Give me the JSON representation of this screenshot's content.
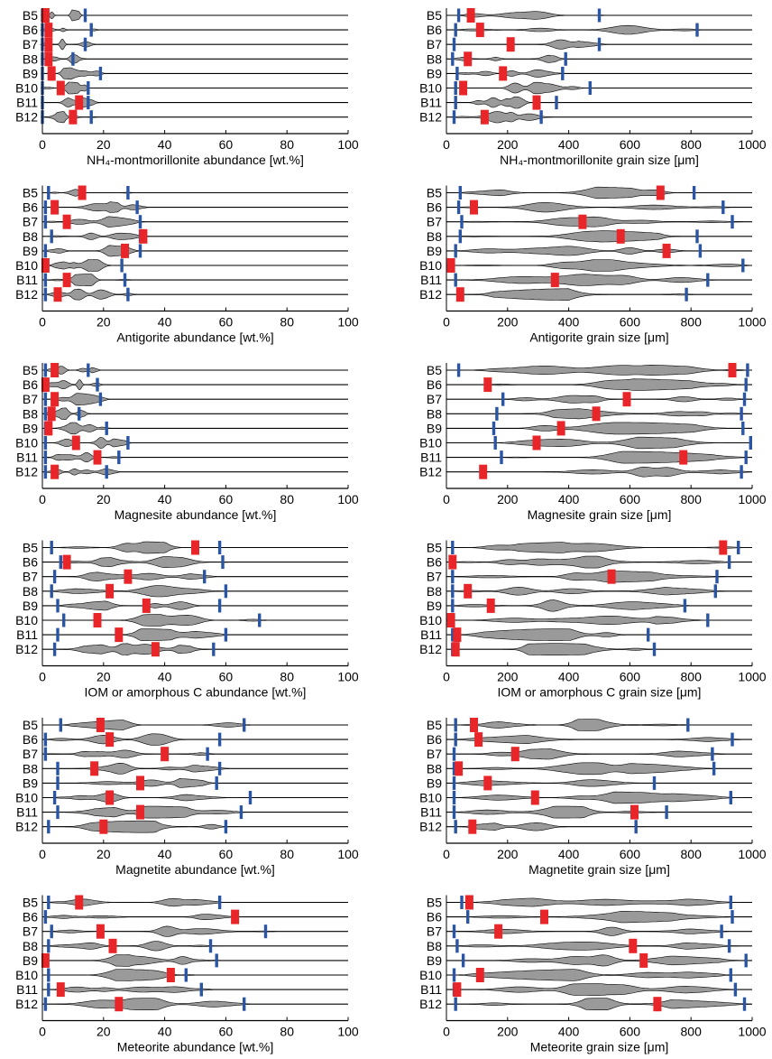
{
  "figure": {
    "rows": [
      "B5",
      "B6",
      "B7",
      "B8",
      "B9",
      "B10",
      "B11",
      "B12"
    ],
    "colors": {
      "violin": "#9a9a9a",
      "best": "#e8262a",
      "bound": "#2a55a4",
      "axis": "#000000"
    }
  },
  "chart_data": [
    {
      "type": "violin",
      "xlabel": "NH₄-montmorillonite abundance [wt.%]",
      "xlim": [
        0,
        100
      ],
      "xticks": [
        "0",
        "20",
        "40",
        "60",
        "80",
        "100"
      ],
      "categories": [
        "B5",
        "B6",
        "B7",
        "B8",
        "B9",
        "B10",
        "B11",
        "B12"
      ],
      "best": [
        1,
        2,
        2,
        2,
        3,
        6,
        12,
        10
      ],
      "bounds": [
        [
          0,
          14
        ],
        [
          0,
          16
        ],
        [
          0,
          14
        ],
        [
          0,
          10
        ],
        [
          0,
          19
        ],
        [
          0,
          15
        ],
        [
          0,
          15
        ],
        [
          0,
          16
        ]
      ]
    },
    {
      "type": "violin",
      "xlabel": "NH₄-montmorillonite grain size [μm]",
      "xlim": [
        0,
        1000
      ],
      "xticks": [
        "0",
        "200",
        "400",
        "600",
        "800",
        "1000"
      ],
      "categories": [
        "B5",
        "B6",
        "B7",
        "B8",
        "B9",
        "B10",
        "B11",
        "B12"
      ],
      "best": [
        80,
        110,
        210,
        70,
        185,
        55,
        295,
        125
      ],
      "bounds": [
        [
          40,
          500
        ],
        [
          30,
          820
        ],
        [
          25,
          500
        ],
        [
          20,
          390
        ],
        [
          35,
          380
        ],
        [
          30,
          470
        ],
        [
          30,
          360
        ],
        [
          25,
          310
        ]
      ]
    },
    {
      "type": "violin",
      "xlabel": "Antigorite abundance [wt.%]",
      "xlim": [
        0,
        100
      ],
      "xticks": [
        "0",
        "20",
        "40",
        "60",
        "80",
        "100"
      ],
      "categories": [
        "B5",
        "B6",
        "B7",
        "B8",
        "B9",
        "B10",
        "B11",
        "B12"
      ],
      "best": [
        13,
        4,
        8,
        33,
        27,
        1,
        8,
        5
      ],
      "bounds": [
        [
          2,
          28
        ],
        [
          1,
          31
        ],
        [
          1,
          32
        ],
        [
          3,
          32
        ],
        [
          1,
          32
        ],
        [
          1,
          26
        ],
        [
          1,
          27
        ],
        [
          1,
          28
        ]
      ]
    },
    {
      "type": "violin",
      "xlabel": "Antigorite grain size [μm]",
      "xlim": [
        0,
        1000
      ],
      "xticks": [
        "0",
        "200",
        "400",
        "600",
        "800",
        "1000"
      ],
      "categories": [
        "B5",
        "B6",
        "B7",
        "B8",
        "B9",
        "B10",
        "B11",
        "B12"
      ],
      "best": [
        700,
        90,
        445,
        570,
        720,
        15,
        355,
        45
      ],
      "bounds": [
        [
          45,
          810
        ],
        [
          40,
          905
        ],
        [
          50,
          935
        ],
        [
          45,
          820
        ],
        [
          30,
          830
        ],
        [
          20,
          970
        ],
        [
          30,
          855
        ],
        [
          40,
          785
        ]
      ]
    },
    {
      "type": "violin",
      "xlabel": "Magnesite abundance [wt.%]",
      "xlim": [
        0,
        100
      ],
      "xticks": [
        "0",
        "20",
        "40",
        "60",
        "80",
        "100"
      ],
      "categories": [
        "B5",
        "B6",
        "B7",
        "B8",
        "B9",
        "B10",
        "B11",
        "B12"
      ],
      "best": [
        4,
        1,
        4,
        3,
        2,
        11,
        18,
        4
      ],
      "bounds": [
        [
          1,
          15
        ],
        [
          1,
          18
        ],
        [
          1,
          19
        ],
        [
          1,
          12
        ],
        [
          1,
          21
        ],
        [
          1,
          28
        ],
        [
          1,
          25
        ],
        [
          1,
          21
        ]
      ]
    },
    {
      "type": "violin",
      "xlabel": "Magnesite grain size [μm]",
      "xlim": [
        0,
        1000
      ],
      "xticks": [
        "0",
        "200",
        "400",
        "600",
        "800",
        "1000"
      ],
      "categories": [
        "B5",
        "B6",
        "B7",
        "B8",
        "B9",
        "B10",
        "B11",
        "B12"
      ],
      "best": [
        935,
        135,
        590,
        490,
        375,
        295,
        775,
        120
      ],
      "bounds": [
        [
          40,
          985
        ],
        [
          130,
          980
        ],
        [
          185,
          975
        ],
        [
          165,
          965
        ],
        [
          155,
          970
        ],
        [
          160,
          995
        ],
        [
          180,
          980
        ],
        [
          115,
          965
        ]
      ]
    },
    {
      "type": "violin",
      "xlabel": "IOM or amorphous C abundance [wt.%]",
      "xlim": [
        0,
        100
      ],
      "xticks": [
        "0",
        "20",
        "40",
        "60",
        "80",
        "100"
      ],
      "categories": [
        "B5",
        "B6",
        "B7",
        "B8",
        "B9",
        "B10",
        "B11",
        "B12"
      ],
      "best": [
        50,
        8,
        28,
        22,
        34,
        18,
        25,
        37
      ],
      "bounds": [
        [
          3,
          58
        ],
        [
          6,
          59
        ],
        [
          4,
          53
        ],
        [
          3,
          60
        ],
        [
          5,
          58
        ],
        [
          7,
          71
        ],
        [
          5,
          60
        ],
        [
          4,
          56
        ]
      ]
    },
    {
      "type": "violin",
      "xlabel": "IOM or amorphous C grain size [μm]",
      "xlim": [
        0,
        1000
      ],
      "xticks": [
        "0",
        "200",
        "400",
        "600",
        "800",
        "1000"
      ],
      "categories": [
        "B5",
        "B6",
        "B7",
        "B8",
        "B9",
        "B10",
        "B11",
        "B12"
      ],
      "best": [
        905,
        20,
        540,
        70,
        145,
        15,
        35,
        30
      ],
      "bounds": [
        [
          20,
          955
        ],
        [
          20,
          925
        ],
        [
          20,
          885
        ],
        [
          20,
          880
        ],
        [
          20,
          780
        ],
        [
          20,
          855
        ],
        [
          20,
          660
        ],
        [
          20,
          680
        ]
      ]
    },
    {
      "type": "violin",
      "xlabel": "Magnetite abundance [wt.%]",
      "xlim": [
        0,
        100
      ],
      "xticks": [
        "0",
        "20",
        "40",
        "60",
        "80",
        "100"
      ],
      "categories": [
        "B5",
        "B6",
        "B7",
        "B8",
        "B9",
        "B10",
        "B11",
        "B12"
      ],
      "best": [
        19,
        22,
        40,
        17,
        32,
        22,
        32,
        20
      ],
      "bounds": [
        [
          6,
          66
        ],
        [
          1,
          58
        ],
        [
          1,
          54
        ],
        [
          5,
          58
        ],
        [
          5,
          57
        ],
        [
          4,
          68
        ],
        [
          5,
          65
        ],
        [
          2,
          60
        ]
      ]
    },
    {
      "type": "violin",
      "xlabel": "Magnetite grain size [μm]",
      "xlim": [
        0,
        1000
      ],
      "xticks": [
        "0",
        "200",
        "400",
        "600",
        "800",
        "1000"
      ],
      "categories": [
        "B5",
        "B6",
        "B7",
        "B8",
        "B9",
        "B10",
        "B11",
        "B12"
      ],
      "best": [
        90,
        105,
        225,
        40,
        135,
        290,
        615,
        85
      ],
      "bounds": [
        [
          30,
          790
        ],
        [
          30,
          935
        ],
        [
          25,
          870
        ],
        [
          25,
          875
        ],
        [
          25,
          680
        ],
        [
          25,
          930
        ],
        [
          25,
          720
        ],
        [
          30,
          620
        ]
      ]
    },
    {
      "type": "violin",
      "xlabel": "Meteorite abundance [wt.%]",
      "xlim": [
        0,
        100
      ],
      "xticks": [
        "0",
        "20",
        "40",
        "60",
        "80",
        "100"
      ],
      "categories": [
        "B5",
        "B6",
        "B7",
        "B8",
        "B9",
        "B10",
        "B11",
        "B12"
      ],
      "best": [
        12,
        63,
        19,
        23,
        1,
        42,
        6,
        25
      ],
      "bounds": [
        [
          2,
          58
        ],
        [
          1,
          63
        ],
        [
          3,
          73
        ],
        [
          2,
          55
        ],
        [
          1,
          57
        ],
        [
          2,
          47
        ],
        [
          2,
          52
        ],
        [
          1,
          66
        ]
      ]
    },
    {
      "type": "violin",
      "xlabel": "Meteorite grain size [μm]",
      "xlim": [
        0,
        1000
      ],
      "xticks": [
        "0",
        "200",
        "400",
        "600",
        "800",
        "1000"
      ],
      "categories": [
        "B5",
        "B6",
        "B7",
        "B8",
        "B9",
        "B10",
        "B11",
        "B12"
      ],
      "best": [
        75,
        320,
        170,
        610,
        645,
        110,
        35,
        690
      ],
      "bounds": [
        [
          50,
          930
        ],
        [
          70,
          935
        ],
        [
          25,
          900
        ],
        [
          35,
          925
        ],
        [
          55,
          980
        ],
        [
          25,
          930
        ],
        [
          25,
          945
        ],
        [
          30,
          975
        ]
      ]
    }
  ]
}
